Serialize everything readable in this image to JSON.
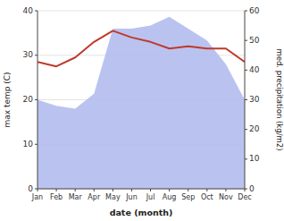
{
  "chart_data": {
    "type": "line",
    "categories": [
      "Jan",
      "Feb",
      "Mar",
      "Apr",
      "May",
      "Jun",
      "Jul",
      "Aug",
      "Sep",
      "Oct",
      "Nov",
      "Dec"
    ],
    "xlabel": "date (month)",
    "ylabel": "max temp (C)",
    "y2label": "med. precipitation (kg/m2)",
    "ylim": [
      0,
      40
    ],
    "yticks": [
      0,
      10,
      20,
      30,
      40
    ],
    "y2lim": [
      0,
      60
    ],
    "y2ticks": [
      0,
      10,
      20,
      30,
      40,
      50,
      60
    ],
    "grid": true,
    "series": [
      {
        "type": "area",
        "axis": "y2",
        "color": "#b3bcee",
        "values": [
          30,
          28,
          27,
          32,
          54,
          54,
          55,
          58,
          54,
          50,
          42,
          30
        ]
      },
      {
        "type": "line",
        "color": "#c0392b",
        "values": [
          28.5,
          27.5,
          29.5,
          33.0,
          35.5,
          34.0,
          33.0,
          31.5,
          32.0,
          31.5,
          31.5,
          28.5
        ]
      }
    ]
  }
}
